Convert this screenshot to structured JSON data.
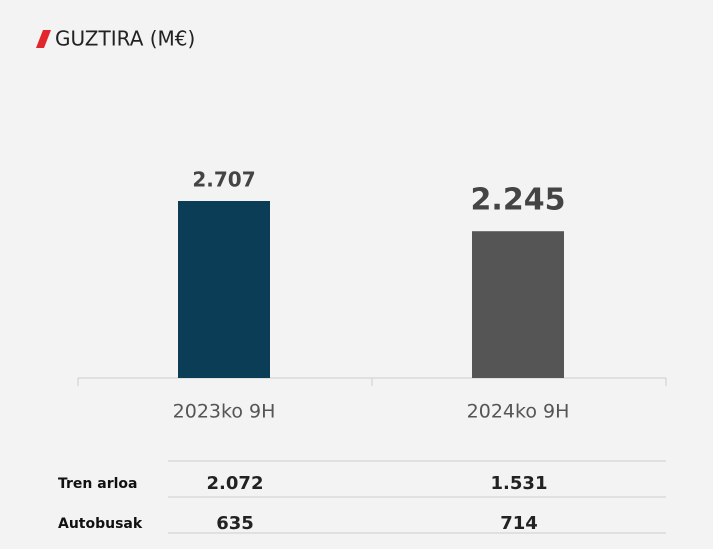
{
  "chart_data": {
    "type": "bar",
    "title": "GUZTIRA (M€)",
    "categories": [
      "2023ko 9H",
      "2024ko 9H"
    ],
    "values": [
      2707,
      2245
    ],
    "value_labels": [
      "2.707",
      "2.245"
    ],
    "colors": [
      "#0b3d56",
      "#555555"
    ],
    "table": {
      "rows": [
        [
          "Tren arloa",
          "2.072",
          "1.531"
        ],
        [
          "Autobusak",
          "635",
          "714"
        ]
      ]
    }
  }
}
